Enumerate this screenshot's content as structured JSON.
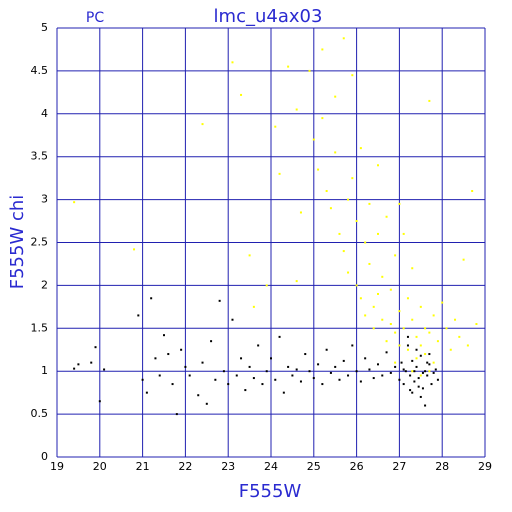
{
  "chart_data": {
    "type": "scatter",
    "title": "lmc_u4ax03",
    "annotation": "PC",
    "x_label": "F555W",
    "y_label": "F555W chi",
    "xlim": [
      19,
      29
    ],
    "ylim": [
      0,
      5
    ],
    "xticks": [
      19,
      20,
      21,
      22,
      23,
      24,
      25,
      26,
      27,
      28,
      29
    ],
    "yticks": [
      0,
      0.5,
      1,
      1.5,
      2,
      2.5,
      3,
      3.5,
      4,
      4.5,
      5
    ],
    "grid": true,
    "series": [
      {
        "color": "#ffff00",
        "x": [
          19.4,
          20.8,
          22.4,
          23.1,
          23.3,
          23.5,
          23.6,
          23.9,
          24.1,
          24.2,
          24.4,
          24.6,
          24.7,
          24.9,
          25.0,
          25.1,
          25.2,
          25.3,
          25.4,
          25.5,
          25.5,
          25.6,
          25.7,
          25.7,
          25.8,
          25.8,
          25.9,
          25.9,
          26.0,
          26.0,
          26.1,
          26.1,
          26.2,
          26.2,
          26.3,
          26.3,
          26.4,
          26.4,
          26.5,
          26.5,
          26.6,
          26.6,
          26.7,
          26.7,
          26.8,
          26.8,
          26.9,
          26.9,
          27.0,
          27.0,
          27.1,
          27.1,
          27.2,
          27.2,
          27.3,
          27.3,
          27.4,
          27.4,
          27.5,
          27.5,
          27.6,
          27.6,
          27.7,
          27.7,
          27.8,
          27.8,
          27.9,
          28.0,
          28.1,
          28.2,
          28.3,
          28.4,
          28.5,
          28.6,
          28.7,
          28.8,
          27.0,
          26.5,
          25.2,
          24.6,
          27.3,
          27.5,
          26.9,
          27.7
        ],
        "values": [
          2.97,
          2.42,
          3.88,
          4.6,
          4.22,
          2.35,
          1.75,
          2.0,
          3.85,
          3.3,
          4.55,
          4.05,
          2.85,
          4.5,
          3.7,
          3.35,
          4.75,
          3.1,
          2.9,
          4.2,
          3.55,
          2.6,
          4.88,
          2.4,
          3.0,
          2.15,
          4.45,
          3.25,
          2.75,
          2.0,
          3.6,
          1.85,
          2.5,
          1.65,
          2.95,
          2.25,
          1.75,
          1.5,
          2.6,
          1.9,
          2.1,
          1.6,
          1.35,
          2.8,
          1.55,
          1.95,
          2.35,
          1.45,
          1.7,
          1.3,
          2.6,
          1.5,
          1.85,
          1.25,
          1.6,
          2.2,
          1.4,
          1.15,
          1.75,
          1.3,
          1.5,
          1.2,
          4.15,
          1.45,
          1.65,
          1.1,
          1.35,
          1.8,
          1.5,
          1.25,
          1.6,
          1.4,
          2.3,
          1.3,
          3.1,
          1.55,
          2.95,
          3.4,
          3.95,
          2.05,
          1.0,
          0.95,
          1.1,
          1.0
        ]
      },
      {
        "color": "#000000",
        "x": [
          19.4,
          19.5,
          19.8,
          19.9,
          20.0,
          20.1,
          20.9,
          21.0,
          21.1,
          21.2,
          21.3,
          21.4,
          21.5,
          21.6,
          21.7,
          21.8,
          21.9,
          22.0,
          22.1,
          22.3,
          22.4,
          22.5,
          22.6,
          22.7,
          22.8,
          22.9,
          23.0,
          23.1,
          23.2,
          23.3,
          23.4,
          23.5,
          23.6,
          23.7,
          23.8,
          23.9,
          24.0,
          24.1,
          24.2,
          24.3,
          24.4,
          24.5,
          24.6,
          24.7,
          24.8,
          24.9,
          25.0,
          25.1,
          25.2,
          25.3,
          25.4,
          25.5,
          25.6,
          25.7,
          25.8,
          25.9,
          26.0,
          26.1,
          26.2,
          26.3,
          26.4,
          26.5,
          26.6,
          26.7,
          26.8,
          26.9,
          27.0,
          27.05,
          27.1,
          27.15,
          27.2,
          27.25,
          27.3,
          27.35,
          27.4,
          27.45,
          27.5,
          27.55,
          27.6,
          27.65,
          27.7,
          27.75,
          27.8,
          27.85,
          27.9,
          27.3,
          27.5,
          27.6,
          27.2,
          27.4,
          27.7,
          27.1,
          27.35,
          27.55,
          27.65,
          27.45,
          27.25
        ],
        "values": [
          1.03,
          1.08,
          1.1,
          1.28,
          0.65,
          1.02,
          1.65,
          0.9,
          0.75,
          1.85,
          1.15,
          0.95,
          1.42,
          1.2,
          0.85,
          0.5,
          1.25,
          1.05,
          0.95,
          0.72,
          1.1,
          0.62,
          1.35,
          0.9,
          1.82,
          1.0,
          0.85,
          1.6,
          0.95,
          1.15,
          0.78,
          1.05,
          0.92,
          1.3,
          0.85,
          1.0,
          1.15,
          0.9,
          1.4,
          0.75,
          1.05,
          0.95,
          1.02,
          0.88,
          1.2,
          1.0,
          0.92,
          1.08,
          0.85,
          1.25,
          0.98,
          1.05,
          0.9,
          1.12,
          0.95,
          1.3,
          1.0,
          0.88,
          1.15,
          1.02,
          0.92,
          1.08,
          0.95,
          1.22,
          0.98,
          1.05,
          0.9,
          1.1,
          0.85,
          1.0,
          1.3,
          0.95,
          1.12,
          0.88,
          1.05,
          0.92,
          1.18,
          0.8,
          1.0,
          0.95,
          1.08,
          0.85,
          0.98,
          1.02,
          0.9,
          0.75,
          0.7,
          0.6,
          1.4,
          1.25,
          1.2,
          1.02,
          1.0,
          0.98,
          1.1,
          0.82,
          0.78
        ]
      }
    ]
  }
}
